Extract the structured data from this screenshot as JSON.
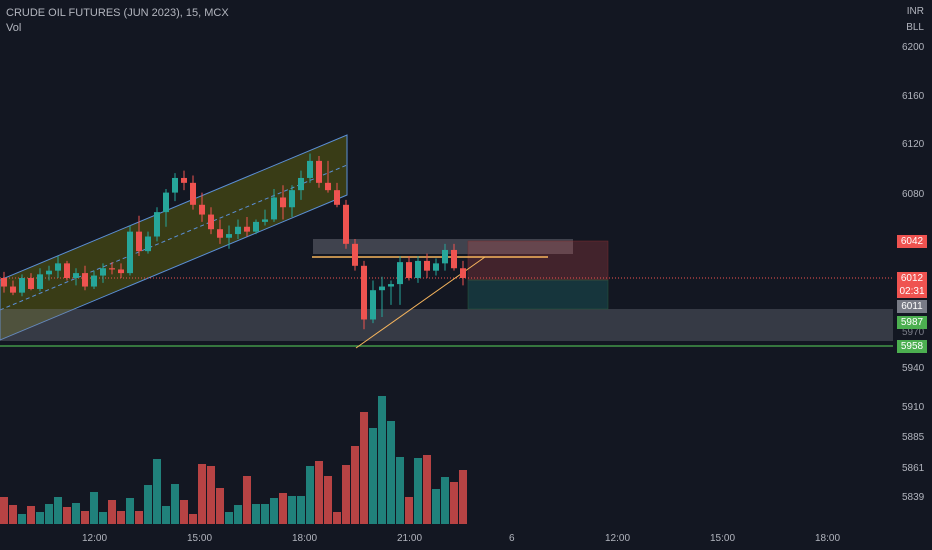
{
  "header": {
    "symbol_line": "CRUDE OIL FUTURES (JUN 2023), 15, MCX",
    "volume_label": "Vol",
    "currency": "INR",
    "unit": "BLL"
  },
  "price_axis": {
    "labels": [
      "6200",
      "6160",
      "6120",
      "6080",
      "5940",
      "5910",
      "5885",
      "5861",
      "5839"
    ],
    "hidden_label": "5970"
  },
  "time_axis": {
    "labels": [
      "12:00",
      "15:00",
      "18:00",
      "21:00",
      "6",
      "12:00",
      "15:00",
      "18:00"
    ]
  },
  "price_tags": {
    "target": "6042",
    "last": "6012",
    "countdown": "02:31",
    "high_low": "6011",
    "mid": "5987",
    "support": "5958"
  },
  "colors": {
    "background": "#131722",
    "up": "#26a69a",
    "down": "#ef5350",
    "channel": "#808000",
    "support_line": "#4caf50",
    "trendline": "#f7b55d"
  },
  "chart_data": {
    "type": "candlestick",
    "symbol": "CRUDE OIL FUTURES (JUN 2023)",
    "timeframe": "15",
    "exchange": "MCX",
    "y_range": [
      5945,
      6210
    ],
    "candles": [
      [
        6012,
        6017,
        6000,
        6005
      ],
      [
        6005,
        6010,
        5998,
        6000
      ],
      [
        6000,
        6015,
        5997,
        6012
      ],
      [
        6012,
        6016,
        6002,
        6003
      ],
      [
        6003,
        6020,
        6001,
        6015
      ],
      [
        6015,
        6022,
        6010,
        6018
      ],
      [
        6018,
        6030,
        6012,
        6024
      ],
      [
        6024,
        6026,
        6010,
        6012
      ],
      [
        6012,
        6020,
        6006,
        6016
      ],
      [
        6016,
        6022,
        6002,
        6005
      ],
      [
        6005,
        6018,
        6003,
        6014
      ],
      [
        6014,
        6024,
        6008,
        6020
      ],
      [
        6020,
        6025,
        6015,
        6019
      ],
      [
        6019,
        6024,
        6012,
        6016
      ],
      [
        6016,
        6055,
        6014,
        6050
      ],
      [
        6050,
        6063,
        6030,
        6034
      ],
      [
        6034,
        6050,
        6032,
        6046
      ],
      [
        6046,
        6070,
        6042,
        6066
      ],
      [
        6066,
        6085,
        6054,
        6082
      ],
      [
        6082,
        6098,
        6075,
        6094
      ],
      [
        6094,
        6100,
        6084,
        6090
      ],
      [
        6090,
        6096,
        6068,
        6072
      ],
      [
        6072,
        6082,
        6058,
        6064
      ],
      [
        6064,
        6070,
        6048,
        6052
      ],
      [
        6052,
        6060,
        6040,
        6045
      ],
      [
        6045,
        6055,
        6036,
        6048
      ],
      [
        6048,
        6060,
        6044,
        6054
      ],
      [
        6054,
        6062,
        6046,
        6050
      ],
      [
        6050,
        6060,
        6048,
        6058
      ],
      [
        6058,
        6068,
        6055,
        6060
      ],
      [
        6060,
        6085,
        6058,
        6078
      ],
      [
        6078,
        6088,
        6060,
        6070
      ],
      [
        6070,
        6088,
        6062,
        6084
      ],
      [
        6084,
        6100,
        6076,
        6094
      ],
      [
        6094,
        6114,
        6090,
        6108
      ],
      [
        6108,
        6112,
        6086,
        6090
      ],
      [
        6090,
        6108,
        6082,
        6084
      ],
      [
        6084,
        6090,
        6070,
        6072
      ],
      [
        6072,
        6076,
        6036,
        6040
      ],
      [
        6040,
        6044,
        6018,
        6022
      ],
      [
        6022,
        6026,
        5970,
        5978
      ],
      [
        5978,
        6010,
        5975,
        6002
      ],
      [
        6002,
        6013,
        5980,
        6005
      ],
      [
        6005,
        6010,
        5990,
        6007
      ],
      [
        6007,
        6030,
        5990,
        6025
      ],
      [
        6025,
        6030,
        6010,
        6012
      ],
      [
        6012,
        6030,
        6008,
        6026
      ],
      [
        6026,
        6032,
        6012,
        6018
      ],
      [
        6018,
        6028,
        6014,
        6024
      ],
      [
        6024,
        6040,
        6018,
        6035
      ],
      [
        6035,
        6040,
        6018,
        6020
      ],
      [
        6020,
        6026,
        6006,
        6012
      ]
    ],
    "volumes": [
      27,
      19,
      10,
      18,
      12,
      20,
      27,
      17,
      21,
      13,
      32,
      12,
      24,
      13,
      26,
      13,
      39,
      65,
      18,
      40,
      24,
      10,
      60,
      58,
      36,
      12,
      19,
      48,
      20,
      20,
      26,
      31,
      28,
      28,
      58,
      63,
      48,
      12,
      59,
      78,
      112,
      96,
      128,
      103,
      67,
      27,
      66,
      69,
      35,
      47,
      42,
      54
    ],
    "annotations": {
      "support_level": 5958,
      "last_price": 6012,
      "countdown": "02:31"
    }
  }
}
